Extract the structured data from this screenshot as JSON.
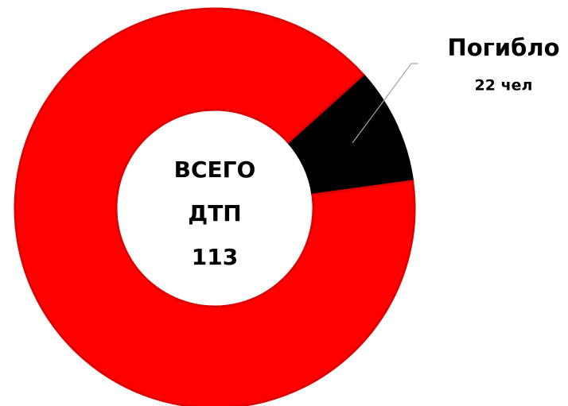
{
  "chart_data": {
    "type": "donut",
    "categories": [
      "Погибло",
      null
    ],
    "values": [
      9.5,
      90.5
    ],
    "colors": [
      "#000000",
      "#ff0000"
    ],
    "center_label": [
      "ВСЕГО",
      "ДТП",
      "113"
    ],
    "annotation": "22 чел"
  }
}
